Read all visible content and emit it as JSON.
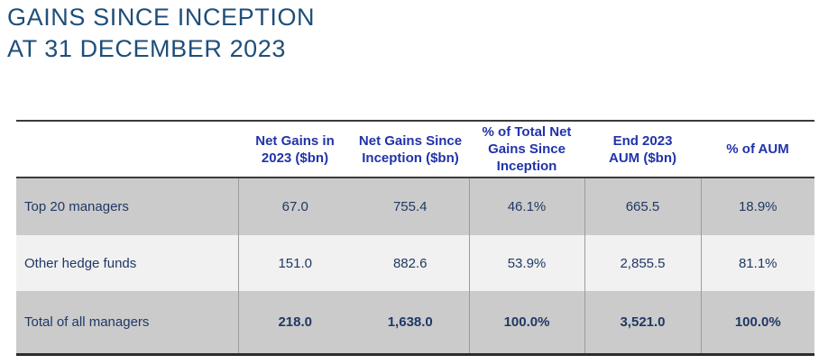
{
  "title": {
    "line1": "GAINS SINCE INCEPTION",
    "line2": "AT 31 DECEMBER 2023"
  },
  "table": {
    "columns": [
      {
        "name": "row-label-column",
        "lines": []
      },
      {
        "name": "net-gains-2023",
        "lines": [
          "Net Gains in",
          "2023 ($bn)"
        ]
      },
      {
        "name": "net-gains-since-inception",
        "lines": [
          "Net Gains Since",
          "Inception ($bn)"
        ]
      },
      {
        "name": "pct-total-net-gains",
        "lines": [
          "% of Total Net",
          "Gains Since",
          "Inception"
        ]
      },
      {
        "name": "end-2023-aum",
        "lines": [
          "End 2023",
          "AUM ($bn)"
        ]
      },
      {
        "name": "pct-of-aum",
        "lines": [
          "% of AUM"
        ]
      }
    ],
    "rows": [
      {
        "label": "Top 20 managers",
        "values": [
          "67.0",
          "755.4",
          "46.1%",
          "665.5",
          "18.9%"
        ],
        "total": false
      },
      {
        "label": "Other hedge funds",
        "values": [
          "151.0",
          "882.6",
          "53.9%",
          "2,855.5",
          "81.1%"
        ],
        "total": false
      },
      {
        "label": "Total of all managers",
        "values": [
          "218.0",
          "1,638.0",
          "100.0%",
          "3,521.0",
          "100.0%"
        ],
        "total": true
      }
    ]
  },
  "colors": {
    "title": "#1F4E79",
    "header_text": "#2133A9",
    "body_text": "#1F3864",
    "row_gray": "#CBCBCB",
    "row_light": "#F1F1F1",
    "rule_dark": "#3B3B3B",
    "rule_bottom": "#2B2B2B",
    "divider": "#9B9B9B",
    "page_bg": "#FFFFFF"
  }
}
